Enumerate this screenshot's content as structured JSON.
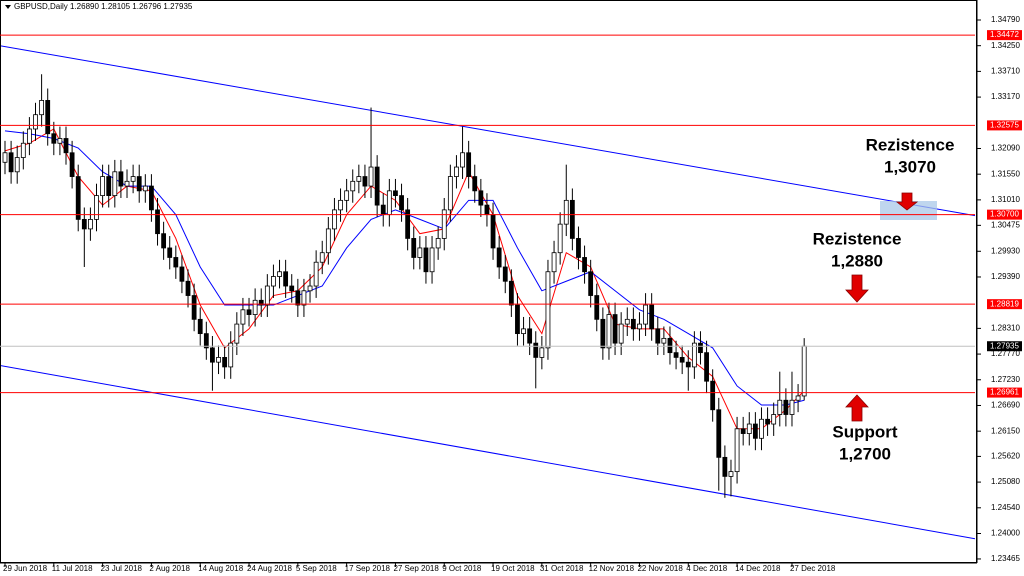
{
  "chart_data": {
    "type": "candlestick",
    "header": "GBPUSD,Daily  1.26890 1.28105 1.26796 1.27935",
    "xlim": [
      -0.82,
      159.0
    ],
    "ylim": [
      1.2338,
      1.3521
    ],
    "xticks": [
      {
        "value": 0,
        "label": "29 Jun 2018"
      },
      {
        "value": 8,
        "label": "11 Jul 2018"
      },
      {
        "value": 16,
        "label": "23 Jul 2018"
      },
      {
        "value": 24,
        "label": "2 Aug 2018"
      },
      {
        "value": 32,
        "label": "14 Aug 2018"
      },
      {
        "value": 40,
        "label": "24 Aug 2018"
      },
      {
        "value": 48,
        "label": "5 Sep 2018"
      },
      {
        "value": 56,
        "label": "17 Sep 2018"
      },
      {
        "value": 64,
        "label": "27 Sep 2018"
      },
      {
        "value": 72,
        "label": "9 Oct 2018"
      },
      {
        "value": 80,
        "label": "19 Oct 2018"
      },
      {
        "value": 88,
        "label": "31 Oct 2018"
      },
      {
        "value": 96,
        "label": "12 Nov 2018"
      },
      {
        "value": 104,
        "label": "22 Nov 2018"
      },
      {
        "value": 112,
        "label": "4 Dec 2018"
      },
      {
        "value": 120,
        "label": "14 Dec 2018"
      },
      {
        "value": 129,
        "label": "27 Dec 2018"
      }
    ],
    "yticks": [
      {
        "value": 1.3479,
        "label": "1.34790"
      },
      {
        "value": 1.3425,
        "label": "1.34250"
      },
      {
        "value": 1.3371,
        "label": "1.33710"
      },
      {
        "value": 1.3317,
        "label": "1.33170"
      },
      {
        "value": 1.3209,
        "label": "1.32090"
      },
      {
        "value": 1.3155,
        "label": "1.31550"
      },
      {
        "value": 1.3101,
        "label": "1.31010"
      },
      1.30475,
      {
        "value": 1.2993,
        "label": "1.29930"
      },
      {
        "value": 1.2939,
        "label": "1.29390"
      },
      {
        "value": 1.2831,
        "label": "1.28310"
      },
      {
        "value": 1.2777,
        "label": "1.27770"
      },
      {
        "value": 1.2723,
        "label": "1.27230"
      },
      {
        "value": 1.2669,
        "label": "1.26690"
      },
      {
        "value": 1.2615,
        "label": "1.26150"
      },
      {
        "value": 1.2562,
        "label": "1.25620"
      },
      {
        "value": 1.2508,
        "label": "1.25080"
      },
      {
        "value": 1.2454,
        "label": "1.24540"
      },
      {
        "value": 1.24,
        "label": "1.24000"
      },
      1.23465
    ],
    "levels": [
      {
        "value": 1.34472,
        "color": "#ff0000"
      },
      {
        "value": 1.32575,
        "color": "#ff0000"
      },
      {
        "value": 1.307,
        "label": "1.30700",
        "color": "#ff0000"
      },
      {
        "value": 1.28819,
        "color": "#ff0000"
      },
      {
        "value": 1.26961,
        "color": "#ff0000"
      }
    ],
    "current_price": {
      "value": 1.27935,
      "color": "#000000"
    },
    "bull_color": "#ffffff",
    "bear_color": "#000000",
    "ohlc": [
      [
        1.318,
        1.3225,
        1.3155,
        1.32
      ],
      [
        1.32,
        1.3225,
        1.3135,
        1.316
      ],
      [
        1.316,
        1.3215,
        1.3135,
        1.319
      ],
      [
        1.319,
        1.3245,
        1.3165,
        1.322
      ],
      [
        1.322,
        1.3275,
        1.3195,
        1.325
      ],
      [
        1.325,
        1.3305,
        1.3225,
        1.328
      ],
      [
        1.328,
        1.3365,
        1.3255,
        1.331
      ],
      [
        1.331,
        1.3335,
        1.3215,
        1.324
      ],
      [
        1.324,
        1.3265,
        1.3195,
        1.322
      ],
      [
        1.322,
        1.3255,
        1.3195,
        1.323
      ],
      [
        1.323,
        1.3255,
        1.3175,
        1.32
      ],
      [
        1.32,
        1.3225,
        1.3125,
        1.315
      ],
      [
        1.315,
        1.3175,
        1.3035,
        1.306
      ],
      [
        1.306,
        1.3085,
        1.296,
        1.304
      ],
      [
        1.304,
        1.3085,
        1.3015,
        1.306
      ],
      [
        1.306,
        1.3135,
        1.3035,
        1.311
      ],
      [
        1.311,
        1.3175,
        1.3085,
        1.315
      ],
      [
        1.315,
        1.3175,
        1.3085,
        1.311
      ],
      [
        1.311,
        1.3185,
        1.3085,
        1.316
      ],
      [
        1.316,
        1.3185,
        1.3105,
        1.313
      ],
      [
        1.313,
        1.3165,
        1.3105,
        1.314
      ],
      [
        1.314,
        1.3175,
        1.3115,
        1.315
      ],
      [
        1.315,
        1.3175,
        1.3095,
        1.312
      ],
      [
        1.312,
        1.3155,
        1.3095,
        1.313
      ],
      [
        1.313,
        1.3155,
        1.3055,
        1.308
      ],
      [
        1.308,
        1.3105,
        1.3005,
        1.303
      ],
      [
        1.303,
        1.3055,
        1.2975,
        1.3
      ],
      [
        1.3,
        1.3025,
        1.2955,
        1.298
      ],
      [
        1.298,
        1.3005,
        1.2935,
        1.296
      ],
      [
        1.296,
        1.2985,
        1.2905,
        1.293
      ],
      [
        1.293,
        1.2955,
        1.2875,
        1.29
      ],
      [
        1.29,
        1.2925,
        1.2825,
        1.285
      ],
      [
        1.285,
        1.2875,
        1.2795,
        1.282
      ],
      [
        1.282,
        1.2845,
        1.2765,
        1.279
      ],
      [
        1.279,
        1.2815,
        1.27,
        1.276
      ],
      [
        1.276,
        1.2795,
        1.2735,
        1.277
      ],
      [
        1.277,
        1.2795,
        1.2725,
        1.275
      ],
      [
        1.275,
        1.2825,
        1.2725,
        1.28
      ],
      [
        1.28,
        1.2865,
        1.2775,
        1.284
      ],
      [
        1.284,
        1.2895,
        1.2815,
        1.287
      ],
      [
        1.287,
        1.2895,
        1.2835,
        1.286
      ],
      [
        1.286,
        1.2915,
        1.2835,
        1.289
      ],
      [
        1.289,
        1.2915,
        1.2855,
        1.288
      ],
      [
        1.288,
        1.2945,
        1.2855,
        1.292
      ],
      [
        1.292,
        1.2965,
        1.2895,
        1.294
      ],
      [
        1.294,
        1.2975,
        1.2915,
        1.295
      ],
      [
        1.295,
        1.2975,
        1.2895,
        1.292
      ],
      [
        1.292,
        1.2945,
        1.2885,
        1.291
      ],
      [
        1.291,
        1.2935,
        1.2855,
        1.288
      ],
      [
        1.288,
        1.2935,
        1.2855,
        1.291
      ],
      [
        1.291,
        1.2945,
        1.2885,
        1.292
      ],
      [
        1.292,
        1.2995,
        1.2895,
        1.297
      ],
      [
        1.297,
        1.3015,
        1.2945,
        1.299
      ],
      [
        1.299,
        1.3065,
        1.2965,
        1.304
      ],
      [
        1.304,
        1.3105,
        1.3015,
        1.308
      ],
      [
        1.308,
        1.3125,
        1.3055,
        1.31
      ],
      [
        1.31,
        1.3145,
        1.3075,
        1.312
      ],
      [
        1.312,
        1.3165,
        1.3095,
        1.314
      ],
      [
        1.314,
        1.3175,
        1.3115,
        1.315
      ],
      [
        1.315,
        1.3175,
        1.3105,
        1.313
      ],
      [
        1.313,
        1.3295,
        1.3105,
        1.317
      ],
      [
        1.317,
        1.3195,
        1.3065,
        1.309
      ],
      [
        1.309,
        1.3115,
        1.3045,
        1.307
      ],
      [
        1.307,
        1.3145,
        1.3045,
        1.312
      ],
      [
        1.312,
        1.3145,
        1.3085,
        1.311
      ],
      [
        1.311,
        1.3135,
        1.3055,
        1.308
      ],
      [
        1.308,
        1.3105,
        1.2995,
        1.302
      ],
      [
        1.302,
        1.3045,
        1.2955,
        1.298
      ],
      [
        1.298,
        1.3025,
        1.2955,
        1.3
      ],
      [
        1.3,
        1.3025,
        1.2925,
        1.295
      ],
      [
        1.295,
        1.3025,
        1.2925,
        1.3
      ],
      [
        1.3,
        1.3045,
        1.2975,
        1.302
      ],
      [
        1.302,
        1.3105,
        1.2995,
        1.308
      ],
      [
        1.308,
        1.3175,
        1.3055,
        1.315
      ],
      [
        1.315,
        1.3195,
        1.3125,
        1.317
      ],
      [
        1.317,
        1.3255,
        1.3145,
        1.32
      ],
      [
        1.32,
        1.3225,
        1.3125,
        1.315
      ],
      [
        1.315,
        1.3175,
        1.3095,
        1.312
      ],
      [
        1.312,
        1.3145,
        1.3065,
        1.309
      ],
      [
        1.309,
        1.3115,
        1.3045,
        1.307
      ],
      [
        1.307,
        1.3095,
        1.2975,
        1.3
      ],
      [
        1.3,
        1.3025,
        1.2935,
        1.296
      ],
      [
        1.296,
        1.2985,
        1.2905,
        1.293
      ],
      [
        1.293,
        1.2955,
        1.2855,
        1.288
      ],
      [
        1.288,
        1.2905,
        1.2795,
        1.282
      ],
      [
        1.282,
        1.2855,
        1.2795,
        1.283
      ],
      [
        1.283,
        1.2855,
        1.2775,
        1.28
      ],
      [
        1.28,
        1.2825,
        1.2705,
        1.277
      ],
      [
        1.277,
        1.2815,
        1.2745,
        1.279
      ],
      [
        1.279,
        1.2975,
        1.2765,
        1.295
      ],
      [
        1.295,
        1.3015,
        1.2925,
        1.299
      ],
      [
        1.299,
        1.3075,
        1.2965,
        1.305
      ],
      [
        1.305,
        1.3175,
        1.3025,
        1.31
      ],
      [
        1.31,
        1.3125,
        1.2995,
        1.302
      ],
      [
        1.302,
        1.3045,
        1.2955,
        1.298
      ],
      [
        1.298,
        1.3005,
        1.2925,
        1.295
      ],
      [
        1.295,
        1.2975,
        1.2875,
        1.29
      ],
      [
        1.29,
        1.2925,
        1.2825,
        1.285
      ],
      [
        1.285,
        1.2875,
        1.2765,
        1.279
      ],
      [
        1.279,
        1.2885,
        1.2765,
        1.286
      ],
      [
        1.286,
        1.2885,
        1.2775,
        1.28
      ],
      [
        1.28,
        1.2865,
        1.2775,
        1.284
      ],
      [
        1.284,
        1.2875,
        1.2815,
        1.285
      ],
      [
        1.285,
        1.2875,
        1.2805,
        1.283
      ],
      [
        1.283,
        1.2865,
        1.2805,
        1.284
      ],
      [
        1.284,
        1.2905,
        1.2815,
        1.288
      ],
      [
        1.288,
        1.2905,
        1.2805,
        1.283
      ],
      [
        1.283,
        1.2855,
        1.2775,
        1.28
      ],
      [
        1.28,
        1.2835,
        1.2775,
        1.281
      ],
      [
        1.281,
        1.2835,
        1.2755,
        1.278
      ],
      [
        1.278,
        1.2805,
        1.2745,
        1.277
      ],
      [
        1.277,
        1.2795,
        1.2735,
        1.276
      ],
      [
        1.276,
        1.2785,
        1.27,
        1.275
      ],
      [
        1.275,
        1.2825,
        1.2725,
        1.28
      ],
      [
        1.28,
        1.2825,
        1.2755,
        1.278
      ],
      [
        1.278,
        1.2805,
        1.2695,
        1.272
      ],
      [
        1.272,
        1.2745,
        1.2635,
        1.266
      ],
      [
        1.266,
        1.2685,
        1.249,
        1.256
      ],
      [
        1.256,
        1.2585,
        1.2475,
        1.252
      ],
      [
        1.252,
        1.2555,
        1.2478,
        1.253
      ],
      [
        1.253,
        1.2645,
        1.2505,
        1.262
      ],
      [
        1.262,
        1.2645,
        1.2585,
        1.261
      ],
      [
        1.261,
        1.2655,
        1.2585,
        1.263
      ],
      [
        1.263,
        1.2655,
        1.2575,
        1.26
      ],
      [
        1.26,
        1.2665,
        1.2575,
        1.264
      ],
      [
        1.264,
        1.2665,
        1.2605,
        1.263
      ],
      [
        1.263,
        1.2675,
        1.2605,
        1.265
      ],
      [
        1.265,
        1.274,
        1.2625,
        1.268
      ],
      [
        1.268,
        1.2705,
        1.2625,
        1.265
      ],
      [
        1.265,
        1.274,
        1.2625,
        1.268
      ],
      [
        1.268,
        1.2714,
        1.2655,
        1.2689
      ],
      [
        1.2689,
        1.28105,
        1.26796,
        1.27935
      ]
    ],
    "series": [
      {
        "color": "#ff0000",
        "x": [
          0,
          4,
          8,
          12,
          16,
          20,
          24,
          28,
          32,
          36,
          40,
          44,
          48,
          52,
          56,
          60,
          64,
          68,
          72,
          76,
          80,
          84,
          88,
          92,
          96,
          100,
          104,
          108,
          112,
          116,
          120,
          124,
          128,
          131
        ],
        "values": [
          1.3204,
          1.322,
          1.325,
          1.315,
          1.309,
          1.313,
          1.312,
          1.302,
          1.288,
          1.279,
          1.283,
          1.29,
          1.291,
          1.296,
          1.307,
          1.313,
          1.31,
          1.303,
          1.304,
          1.316,
          1.307,
          1.29,
          1.282,
          1.299,
          1.296,
          1.284,
          1.283,
          1.283,
          1.277,
          1.273,
          1.262,
          1.262,
          1.266,
          1.27
        ]
      },
      {
        "color": "#0000ff",
        "x": [
          0,
          4,
          8,
          12,
          16,
          20,
          24,
          28,
          32,
          36,
          40,
          44,
          48,
          52,
          56,
          60,
          64,
          68,
          72,
          76,
          80,
          84,
          88,
          92,
          96,
          100,
          104,
          108,
          112,
          116,
          120,
          124,
          128,
          131
        ],
        "values": [
          1.3246,
          1.324,
          1.323,
          1.321,
          1.316,
          1.313,
          1.313,
          1.307,
          1.296,
          1.288,
          1.288,
          1.288,
          1.29,
          1.292,
          1.3,
          1.306,
          1.308,
          1.306,
          1.304,
          1.31,
          1.31,
          1.3,
          1.291,
          1.293,
          1.295,
          1.291,
          1.287,
          1.285,
          1.282,
          1.279,
          1.271,
          1.267,
          1.267,
          1.268
        ]
      }
    ],
    "trendlines": [
      {
        "color": "#0000ff",
        "x": [
          -0.82,
          159.0
        ],
        "values": [
          1.3425,
          1.3068
        ]
      },
      {
        "color": "#0000ff",
        "x": [
          -0.82,
          159.0
        ],
        "values": [
          1.2753,
          1.2389
        ]
      }
    ],
    "annotations": [
      [
        "Rezistence",
        "1,3070"
      ],
      [
        "Rezistence",
        "1,2880"
      ],
      [
        "Support",
        "1,2700"
      ]
    ]
  }
}
